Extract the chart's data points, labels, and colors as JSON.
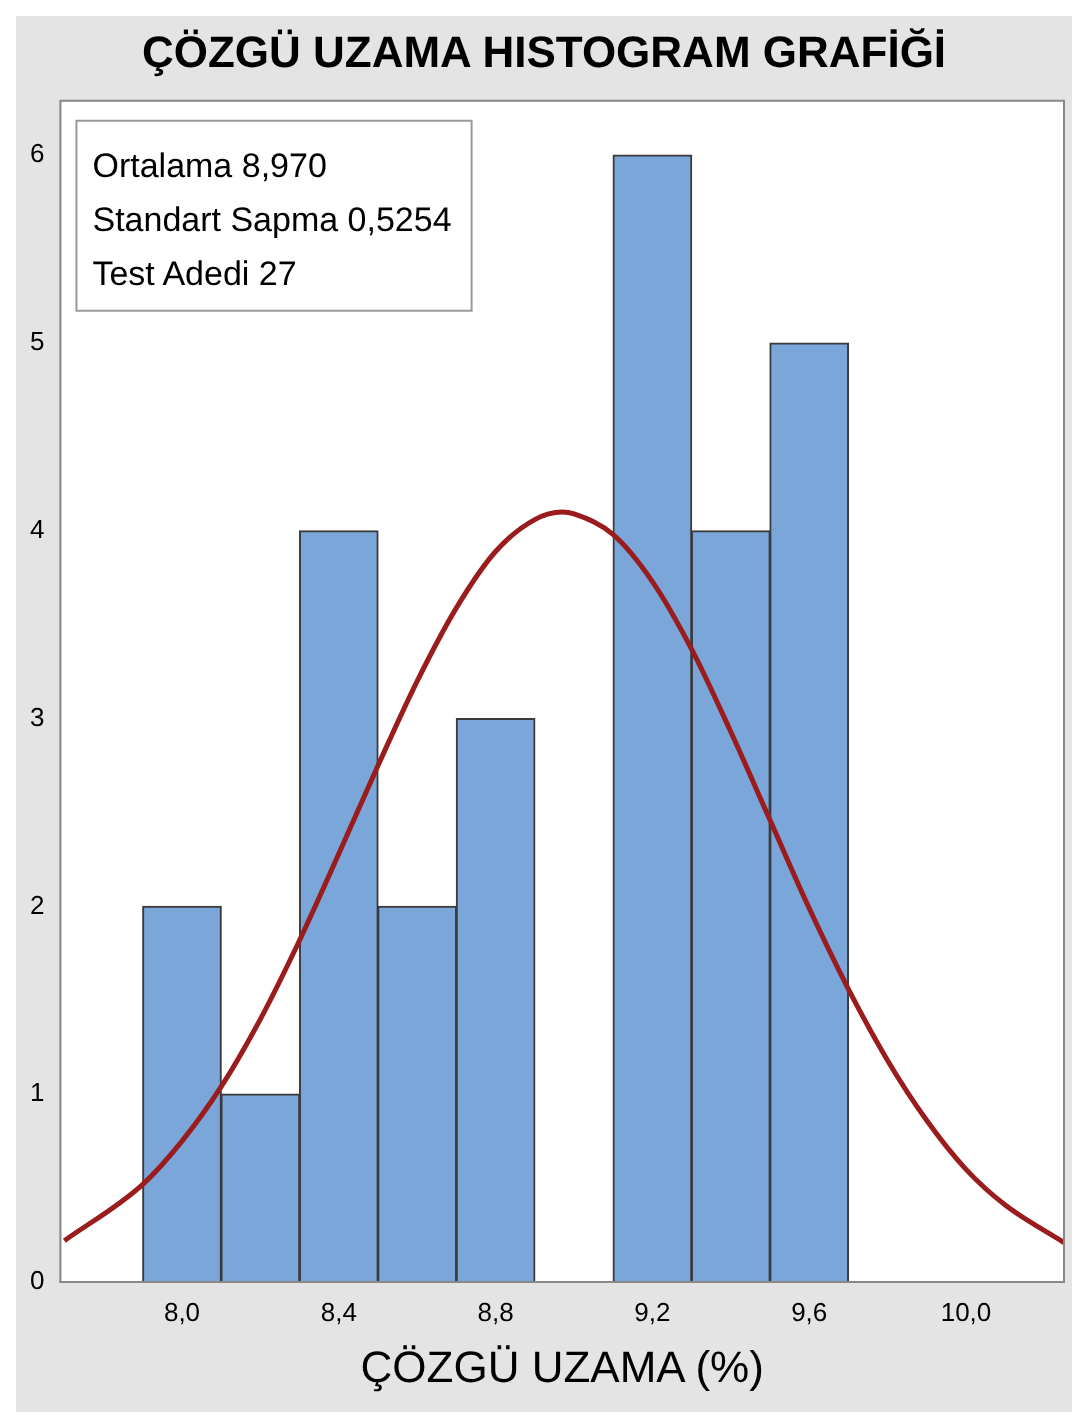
{
  "chart_data": [
    {
      "type": "histogram",
      "title": "ÇÖZGÜ UZAMA HISTOGRAM GRAFİĞİ",
      "xlabel": "ÇÖZGÜ UZAMA (%)",
      "bins": [
        7.9,
        8.1,
        8.3,
        8.5,
        8.7,
        8.9,
        9.1,
        9.3,
        9.5,
        9.7
      ],
      "values": [
        2,
        1,
        4,
        2,
        3,
        0,
        6,
        4,
        5
      ],
      "color": "#7ba6d9",
      "series": [
        {
          "type": "line",
          "color": "#9b1c1c",
          "x": [
            7.7,
            7.9,
            8.0,
            8.1,
            8.2,
            8.3,
            8.4,
            8.5,
            8.6,
            8.7,
            8.8,
            8.9,
            8.97,
            9.0,
            9.1,
            9.2,
            9.3,
            9.4,
            9.5,
            9.6,
            9.7,
            9.8,
            9.9,
            10.0,
            10.1,
            10.25
          ],
          "values": [
            0.22,
            0.52,
            0.75,
            1.04,
            1.4,
            1.82,
            2.28,
            2.75,
            3.2,
            3.59,
            3.89,
            4.06,
            4.1,
            4.09,
            3.98,
            3.73,
            3.37,
            2.93,
            2.46,
            1.99,
            1.56,
            1.18,
            0.86,
            0.6,
            0.41,
            0.21
          ]
        }
      ],
      "annotations": [
        "Ortalama 8,970",
        "Standart Sapma 0,5254",
        "Test Adedi 27"
      ],
      "xlim": [
        7.69,
        10.25
      ],
      "ylim": [
        0,
        6.29
      ],
      "xticks": [
        {
          "value": 8.0,
          "label": "8,0"
        },
        {
          "value": 8.4,
          "label": "8,4"
        },
        {
          "value": 8.8,
          "label": "8,8"
        },
        {
          "value": 9.2,
          "label": "9,2"
        },
        {
          "value": 9.6,
          "label": "9,6"
        },
        {
          "value": 10.0,
          "label": "10,0"
        }
      ],
      "yticks": [
        0,
        1,
        2,
        3,
        4,
        5,
        6
      ],
      "grid": false,
      "legend": false
    }
  ]
}
